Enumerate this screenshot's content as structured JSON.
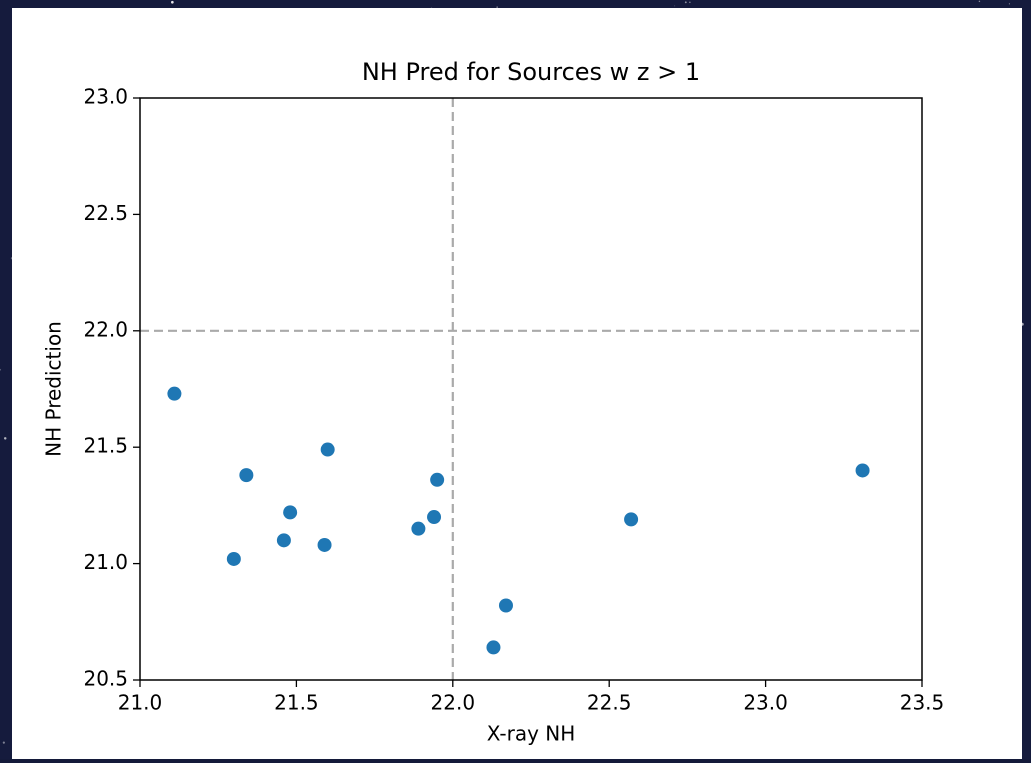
{
  "chart_data": {
    "type": "scatter",
    "title": "NH Pred for Sources w z > 1",
    "x_label": "X-ray NH",
    "y_label": "NH Prediction",
    "x": [
      21.11,
      21.34,
      21.6,
      21.48,
      21.46,
      21.3,
      21.59,
      21.95,
      21.94,
      21.89,
      22.17,
      22.13,
      22.57,
      23.31
    ],
    "values": [
      21.73,
      21.38,
      21.49,
      21.22,
      21.1,
      21.02,
      21.08,
      21.36,
      21.2,
      21.15,
      20.82,
      20.64,
      21.19,
      21.4
    ],
    "color": "#1f77b4",
    "xlim": [
      21.0,
      23.5
    ],
    "xticks": [
      {
        "value": 21,
        "label": "21.0"
      },
      {
        "value": 21.5,
        "label": "21.5"
      },
      {
        "value": 22,
        "label": "22.0"
      },
      {
        "value": 22.5,
        "label": "22.5"
      },
      {
        "value": 23,
        "label": "23.0"
      },
      {
        "value": 23.5,
        "label": "23.5"
      }
    ],
    "ylim": [
      20.5,
      23.0
    ],
    "yticks": [
      {
        "value": 20.5,
        "label": "20.5"
      },
      {
        "value": 21,
        "label": "21.0"
      },
      {
        "value": 21.5,
        "label": "21.5"
      },
      {
        "value": 22,
        "label": "22.0"
      },
      {
        "value": 22.5,
        "label": "22.5"
      },
      {
        "value": 23,
        "label": "23.0"
      }
    ],
    "vlines": [
      22
    ],
    "hlines": [
      22
    ],
    "reference_line_color": "#aaaaaa"
  }
}
